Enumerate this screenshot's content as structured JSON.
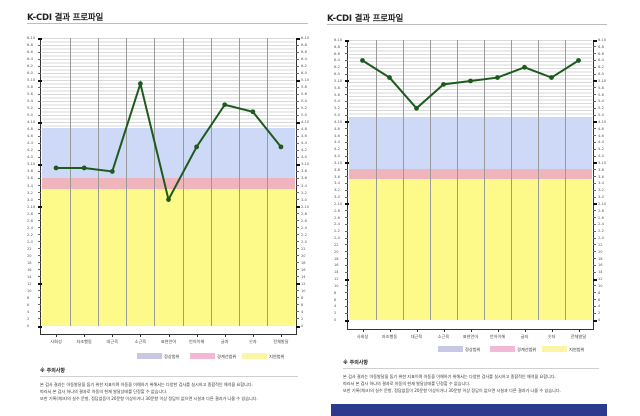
{
  "colors": {
    "normal_range": "#cdd9f7",
    "borderline_range": "#f0b4bc",
    "delayed_range": "#fdfa8a",
    "above_grid": "#d9d9d9",
    "line": "#1e5a1e",
    "legend_normal": "#c8c8e4",
    "legend_borderline": "#f2b8d6",
    "legend_delayed": "#fdf5a6",
    "footer_bar": "#2b3a8c"
  },
  "y_tick_labels": [
    "6-10",
    "6-8",
    "6-6",
    "6-4",
    "6-2",
    "6-0",
    "5-10",
    "5-8",
    "5-6",
    "5-4",
    "5-2",
    "5-0",
    "4-10",
    "4-8",
    "4-6",
    "4-4",
    "4-2",
    "4-0",
    "3-10",
    "3-8",
    "3-6",
    "3-4",
    "3-2",
    "3-0",
    "2-10",
    "2-8",
    "2-6",
    "2-4",
    "2-2",
    "2-0",
    "22",
    "20",
    "18",
    "16",
    "14",
    "12",
    "10",
    "8",
    "6",
    "4",
    "2",
    "0"
  ],
  "categories": [
    "사회성",
    "자조행동",
    "대근육",
    "소근육",
    "표현언어",
    "언어이해",
    "글자",
    "숫자",
    "전체발달"
  ],
  "legend": [
    {
      "label": "정상범위"
    },
    {
      "label": "경계선범위"
    },
    {
      "label": "지연범위"
    }
  ],
  "panels": [
    {
      "title": "K-CDI 결과 프로파일",
      "notes_title": "※ 주의사항",
      "notes": [
        "본 검사 결과는 아동발달을 돕기 위한 지표이며 아동을 이해하기 위해서는 다양한 검사를 실시하고 종합적인 해석을 요합니다.",
        "따라서 본 검사 하나의 결과로 아동의 현재 발달상태를 단정할 수 없습니다.",
        "또한 기록(체크)의 실수 문항, 정답없음이 20문항 이상이거나 30문항 이상 정답이 없으면 시설과 다른 결과가 나올 수 있습니다."
      ]
    },
    {
      "title": "K-CDI 결과 프로파일",
      "notes_title": "※ 주의사항",
      "notes": [
        "본 검사 결과는 아동발달을 돕기 위한 지표이며 아동을 이해하기 위해서는 다양한 검사를 실시하고 종합적인 해석을 요합니다.",
        "따라서 본 검사 하나의 결과로 아동의 현재 발달상태를 단정할 수 없습니다.",
        "또한 기록(체크)의 실수 문항, 정답없음이 20문항 이상이거나 30문항 이상 정답이 없으면 시설과 다른 결과가 나올 수 있습니다."
      ]
    }
  ],
  "chart_data": [
    {
      "type": "line",
      "title": "K-CDI 결과 프로파일",
      "xlabel": "",
      "ylabel": "발달연령 (세-개월)",
      "categories": [
        "사회성",
        "자조행동",
        "대근육",
        "소근육",
        "표현언어",
        "언어이해",
        "글자",
        "숫자",
        "전체발달"
      ],
      "unit": "months",
      "ylim": [
        0,
        82
      ],
      "series": [
        {
          "name": "발달연령",
          "values": [
            45,
            45,
            44,
            69,
            36,
            51,
            63,
            61,
            51
          ],
          "labels": [
            "3-9",
            "3-9",
            "3-8",
            "5-9",
            "3-0",
            "4-3",
            "5-3",
            "5-1",
            "4-3"
          ]
        }
      ],
      "bands": [
        {
          "name": "지연범위",
          "from": 0,
          "to": 39
        },
        {
          "name": "경계선범위",
          "from": 39,
          "to": 42
        },
        {
          "name": "정상범위",
          "from": 42,
          "to": 56.5
        }
      ],
      "y_tick_step_months": 2,
      "legend_position": "bottom-right"
    },
    {
      "type": "line",
      "title": "K-CDI 결과 프로파일",
      "xlabel": "",
      "ylabel": "발달연령 (세-개월)",
      "categories": [
        "사회성",
        "자조행동",
        "대근육",
        "소근육",
        "표현언어",
        "언어이해",
        "글자",
        "숫자",
        "전체발달"
      ],
      "unit": "months",
      "ylim": [
        0,
        82
      ],
      "series": [
        {
          "name": "발달연령",
          "values": [
            76,
            71,
            62,
            69,
            70,
            71,
            74,
            71,
            76
          ],
          "labels": [
            "6-4",
            "5-11",
            "5-2",
            "5-9",
            "5-10",
            "5-11",
            "6-2",
            "5-11",
            "6-4"
          ]
        }
      ],
      "bands": [
        {
          "name": "지연범위",
          "from": 0,
          "to": 41.3
        },
        {
          "name": "경계선범위",
          "from": 41.3,
          "to": 44.3
        },
        {
          "name": "정상범위",
          "from": 44.3,
          "to": 59.5
        }
      ],
      "y_tick_step_months": 2,
      "legend_position": "bottom-right"
    }
  ]
}
